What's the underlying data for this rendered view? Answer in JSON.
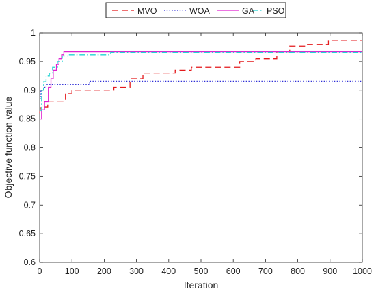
{
  "chart_data": {
    "type": "line",
    "xlabel": "Iteration",
    "ylabel": "Objective function value",
    "xlim": [
      0,
      1000
    ],
    "ylim": [
      0.6,
      1.0
    ],
    "x_ticks": [
      "0",
      "100",
      "200",
      "300",
      "400",
      "500",
      "600",
      "700",
      "800",
      "900",
      "1000"
    ],
    "y_ticks": [
      "0.6",
      "0.65",
      "0.7",
      "0.75",
      "0.8",
      "0.85",
      "0.9",
      "0.95",
      "1"
    ],
    "grid": false,
    "legend_position": "top-center, horizontal, outside plot",
    "series": [
      {
        "name": "MVO",
        "color": "#e41a1c",
        "line_style": "dashed",
        "points": [
          [
            0,
            0.86
          ],
          [
            3,
            0.871
          ],
          [
            25,
            0.871
          ],
          [
            25,
            0.881
          ],
          [
            80,
            0.881
          ],
          [
            80,
            0.895
          ],
          [
            100,
            0.895
          ],
          [
            100,
            0.9
          ],
          [
            230,
            0.9
          ],
          [
            230,
            0.905
          ],
          [
            280,
            0.905
          ],
          [
            280,
            0.92
          ],
          [
            320,
            0.92
          ],
          [
            320,
            0.93
          ],
          [
            420,
            0.93
          ],
          [
            420,
            0.935
          ],
          [
            470,
            0.935
          ],
          [
            470,
            0.94
          ],
          [
            620,
            0.94
          ],
          [
            620,
            0.95
          ],
          [
            670,
            0.95
          ],
          [
            670,
            0.955
          ],
          [
            735,
            0.955
          ],
          [
            735,
            0.967
          ],
          [
            775,
            0.967
          ],
          [
            775,
            0.977
          ],
          [
            830,
            0.977
          ],
          [
            830,
            0.98
          ],
          [
            895,
            0.98
          ],
          [
            895,
            0.987
          ],
          [
            1000,
            0.987
          ]
        ]
      },
      {
        "name": "WOA",
        "color": "#2f2fd6",
        "line_style": "dotted",
        "points": [
          [
            0,
            0.886
          ],
          [
            4,
            0.886
          ],
          [
            4,
            0.9
          ],
          [
            12,
            0.9
          ],
          [
            12,
            0.905
          ],
          [
            20,
            0.905
          ],
          [
            20,
            0.91
          ],
          [
            155,
            0.91
          ],
          [
            155,
            0.916
          ],
          [
            1000,
            0.916
          ]
        ]
      },
      {
        "name": "GA",
        "color": "#e020d0",
        "line_style": "solid",
        "points": [
          [
            0,
            0.85
          ],
          [
            6,
            0.85
          ],
          [
            6,
            0.866
          ],
          [
            15,
            0.866
          ],
          [
            15,
            0.88
          ],
          [
            27,
            0.88
          ],
          [
            27,
            0.905
          ],
          [
            35,
            0.905
          ],
          [
            35,
            0.92
          ],
          [
            42,
            0.92
          ],
          [
            42,
            0.935
          ],
          [
            52,
            0.935
          ],
          [
            52,
            0.945
          ],
          [
            60,
            0.945
          ],
          [
            60,
            0.955
          ],
          [
            68,
            0.955
          ],
          [
            68,
            0.962
          ],
          [
            75,
            0.962
          ],
          [
            75,
            0.967
          ],
          [
            1000,
            0.967
          ]
        ]
      },
      {
        "name": "PSO",
        "color": "#22d3d3",
        "line_style": "dashdot",
        "points": [
          [
            0,
            0.865
          ],
          [
            6,
            0.865
          ],
          [
            6,
            0.9
          ],
          [
            12,
            0.9
          ],
          [
            12,
            0.915
          ],
          [
            20,
            0.915
          ],
          [
            20,
            0.925
          ],
          [
            30,
            0.925
          ],
          [
            30,
            0.93
          ],
          [
            40,
            0.93
          ],
          [
            40,
            0.94
          ],
          [
            55,
            0.94
          ],
          [
            55,
            0.95
          ],
          [
            70,
            0.95
          ],
          [
            70,
            0.96
          ],
          [
            90,
            0.96
          ],
          [
            90,
            0.962
          ],
          [
            220,
            0.962
          ],
          [
            220,
            0.966
          ],
          [
            1000,
            0.966
          ]
        ]
      }
    ]
  }
}
